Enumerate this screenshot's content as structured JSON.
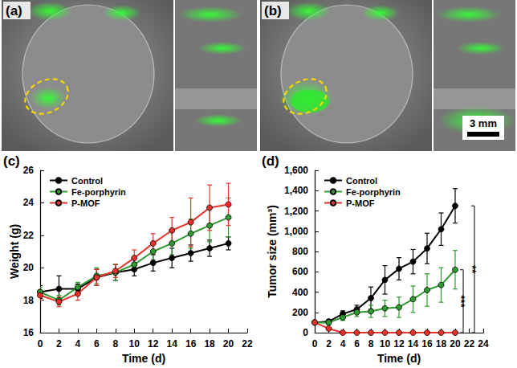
{
  "panels": [
    {
      "label": "(a)"
    },
    {
      "label": "(b)",
      "scale_bar": "3 mm"
    }
  ],
  "chart_data": [
    {
      "panel": "(c)",
      "type": "line",
      "x_label": "Time (d)",
      "y_label": "Weight (g)",
      "x": [
        0,
        2,
        4,
        6,
        8,
        10,
        12,
        14,
        16,
        18,
        20
      ],
      "xlim": [
        0,
        22
      ],
      "xticks": [
        0,
        2,
        4,
        6,
        8,
        10,
        12,
        14,
        16,
        18,
        20,
        22
      ],
      "ylim": [
        16,
        26
      ],
      "yticks": [
        16,
        18,
        20,
        22,
        24,
        26
      ],
      "legend": "upper left",
      "marker": "circle",
      "series": [
        {
          "name": "Control",
          "color": "#000000",
          "values": [
            18.5,
            18.7,
            18.7,
            19.4,
            19.7,
            19.9,
            20.3,
            20.6,
            20.9,
            21.2,
            21.5
          ],
          "errors": [
            0.4,
            0.8,
            0.3,
            0.5,
            0.5,
            0.4,
            0.5,
            0.6,
            0.5,
            0.5,
            0.4
          ]
        },
        {
          "name": "Fe-porphyrin",
          "color": "#2f9a2f",
          "values": [
            18.5,
            18.0,
            18.8,
            19.5,
            19.7,
            20.2,
            21.0,
            21.5,
            22.1,
            22.6,
            23.1
          ],
          "errors": [
            0.3,
            0.3,
            0.3,
            0.5,
            0.5,
            0.4,
            0.5,
            0.7,
            0.9,
            1.0,
            1.2
          ]
        },
        {
          "name": "P-MOF",
          "color": "#e8322b",
          "values": [
            18.3,
            17.9,
            18.4,
            19.4,
            19.8,
            20.6,
            21.5,
            22.3,
            22.8,
            23.7,
            23.9
          ],
          "errors": [
            0.3,
            0.3,
            0.4,
            0.5,
            0.4,
            0.5,
            0.6,
            0.8,
            1.5,
            1.4,
            1.3
          ]
        }
      ]
    },
    {
      "panel": "(d)",
      "type": "line",
      "x_label": "Time (d)",
      "y_label": "Tumor size (mm³)",
      "x": [
        0,
        2,
        4,
        6,
        8,
        10,
        12,
        14,
        16,
        18,
        20
      ],
      "xlim": [
        0,
        24
      ],
      "xticks": [
        0,
        2,
        4,
        6,
        8,
        10,
        12,
        14,
        16,
        18,
        20,
        22,
        24
      ],
      "ylim": [
        0,
        1600
      ],
      "yticks": [
        0,
        200,
        400,
        600,
        800,
        {
          "value": 1000,
          "label": "1,000"
        },
        {
          "value": 1200,
          "label": "1,200"
        },
        {
          "value": 1400,
          "label": "1,400"
        },
        {
          "value": 1600,
          "label": "1,600"
        }
      ],
      "legend": "upper left",
      "marker": "circle",
      "series": [
        {
          "name": "Control",
          "color": "#000000",
          "values": [
            100,
            110,
            185,
            230,
            340,
            520,
            630,
            700,
            830,
            1020,
            1250
          ],
          "errors": [
            10,
            20,
            30,
            40,
            110,
            140,
            110,
            120,
            150,
            160,
            170
          ]
        },
        {
          "name": "Fe-porphyrin",
          "color": "#2f9a2f",
          "values": [
            100,
            100,
            150,
            200,
            210,
            240,
            250,
            330,
            420,
            470,
            620
          ],
          "errors": [
            10,
            20,
            30,
            40,
            60,
            80,
            100,
            130,
            160,
            170,
            190
          ]
        },
        {
          "name": "P-MOF",
          "color": "#e8322b",
          "values": [
            100,
            40,
            0,
            0,
            0,
            0,
            0,
            0,
            0,
            0,
            0
          ],
          "errors": [
            5,
            10,
            0,
            0,
            0,
            0,
            0,
            0,
            0,
            0,
            0
          ]
        }
      ],
      "annotations": [
        {
          "label": "**",
          "between": [
            "Control",
            "P-MOF"
          ]
        },
        {
          "label": "***",
          "between": [
            "Fe-porphyrin",
            "P-MOF"
          ]
        }
      ]
    }
  ]
}
